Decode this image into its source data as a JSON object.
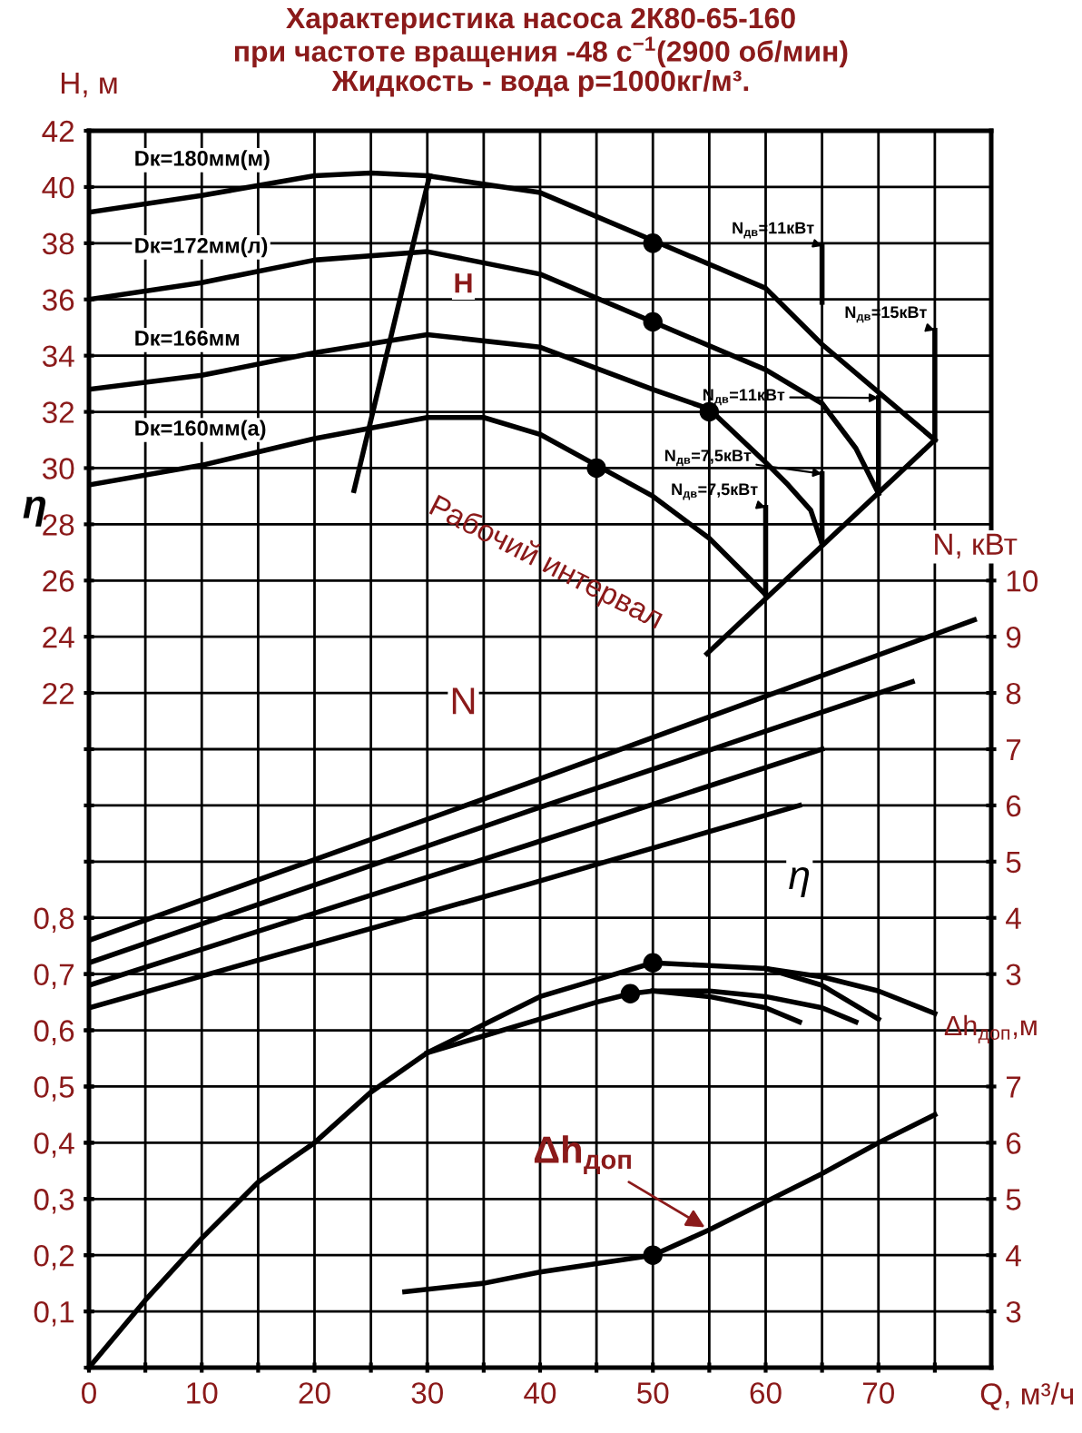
{
  "chart_data": [
    {
      "type": "line",
      "title": "Характеристика насоса 2К80-65-160\nпри частоте вращения -48 с$^{−1}$(2900 об/мин)\nЖидкость - вода р=1000кг/м³.",
      "xlabel": "Q, м³/ч",
      "ylabel": "H, м",
      "y2label": "N, кВт",
      "y3label": "η",
      "xlim": [
        0,
        80
      ],
      "xticks": [
        0,
        {
          "value": 5,
          "label": null
        },
        10,
        {
          "value": 15,
          "label": null
        },
        20,
        {
          "value": 25,
          "label": null
        },
        30,
        {
          "value": 35,
          "label": null
        },
        40,
        {
          "value": 45,
          "label": null
        },
        50,
        {
          "value": 55,
          "label": null
        },
        60,
        {
          "value": 65,
          "label": null
        },
        70,
        {
          "value": 75,
          "label": null
        }
      ],
      "ylim": [
        -2,
        42
      ],
      "yticks": [
        {
          "value": -2,
          "label": null
        },
        {
          "value": 0,
          "label": null
        },
        {
          "value": 2,
          "label": null
        },
        {
          "value": 4,
          "label": null
        },
        {
          "value": 6,
          "label": null
        },
        {
          "value": 8,
          "label": null
        },
        {
          "value": 10,
          "label": null
        },
        {
          "value": 12,
          "label": null
        },
        {
          "value": 14,
          "label": null
        },
        {
          "value": 16,
          "label": null
        },
        {
          "value": 18,
          "label": null
        },
        {
          "value": 20,
          "label": null
        },
        22,
        24,
        26,
        28,
        30,
        32,
        34,
        36,
        38,
        40,
        42
      ],
      "y2lim": [
        -4,
        18
      ],
      "y2ticks": [
        3,
        4,
        5,
        6,
        7,
        8,
        9,
        10
      ],
      "y3lim": [
        0,
        2.2
      ],
      "y3ticks": [
        {
          "value": 0.1,
          "label": "0,1"
        },
        {
          "value": 0.2,
          "label": "0,2"
        },
        {
          "value": 0.3,
          "label": "0,3"
        },
        {
          "value": 0.4,
          "label": "0,4"
        },
        {
          "value": 0.5,
          "label": "0,5"
        },
        {
          "value": 0.6,
          "label": "0,6"
        },
        {
          "value": 0.7,
          "label": "0,7"
        },
        {
          "value": 0.8,
          "label": "0,8"
        }
      ],
      "grid": true,
      "marker": "none",
      "line_style": "solid",
      "series": [
        {
          "name": "Dк=180мм(м)",
          "color": "#000000",
          "x": [
            0,
            10,
            20,
            25,
            30,
            40,
            50,
            60,
            65,
            70,
            75
          ],
          "values": [
            39.1,
            39.7,
            40.4,
            40.5,
            40.4,
            39.8,
            38.1,
            36.4,
            34.4,
            32.7,
            31.0
          ]
        },
        {
          "name": "Dк=172мм(л)",
          "color": "#000000",
          "x": [
            0,
            10,
            20,
            30,
            40,
            50,
            60,
            65,
            68,
            70
          ],
          "values": [
            36.0,
            36.6,
            37.4,
            37.7,
            36.9,
            35.2,
            33.5,
            32.3,
            30.7,
            29.1
          ]
        },
        {
          "name": "Dк=166мм",
          "color": "#000000",
          "x": [
            0,
            10,
            20,
            30,
            40,
            50,
            55,
            60,
            62,
            64,
            65
          ],
          "values": [
            32.8,
            33.3,
            34.1,
            34.75,
            34.3,
            32.8,
            32.1,
            30.2,
            29.4,
            28.5,
            27.3
          ]
        },
        {
          "name": "Dк=160мм(а)",
          "color": "#000000",
          "x": [
            0,
            10,
            20,
            30,
            35,
            40,
            45,
            50,
            55,
            60
          ],
          "values": [
            29.4,
            30.1,
            31.05,
            31.8,
            31.8,
            31.2,
            30.1,
            29.0,
            27.5,
            25.5
          ]
        },
        {
          "type": "scatter",
          "marker": "circle",
          "color": "#000000",
          "x": [
            50,
            50,
            55,
            45
          ],
          "values": [
            38,
            35.2,
            32,
            30
          ]
        },
        {
          "color": "#000000",
          "x": [
            30.2,
            23.5
          ],
          "values": [
            40.4,
            29.2
          ]
        },
        {
          "color": "#000000",
          "x": [
            75,
            54.8
          ],
          "values": [
            31.0,
            23.4
          ]
        },
        {
          "color": "#000000",
          "x": [
            65,
            65
          ],
          "values": [
            37.9,
            35.9
          ]
        },
        {
          "color": "#000000",
          "x": [
            75,
            75
          ],
          "values": [
            34.9,
            31.0
          ]
        },
        {
          "color": "#000000",
          "x": [
            70,
            70
          ],
          "values": [
            32.5,
            29.1
          ]
        },
        {
          "color": "#000000",
          "x": [
            65,
            65
          ],
          "values": [
            29.8,
            27.3
          ]
        },
        {
          "color": "#000000",
          "x": [
            60,
            60
          ],
          "values": [
            28.6,
            25.5
          ]
        },
        {
          "color": "#000000",
          "axis": "y2",
          "x": [
            0,
            39,
            78.5
          ],
          "values": [
            3.6,
            6.4,
            9.3
          ]
        },
        {
          "color": "#000000",
          "axis": "y2",
          "x": [
            0,
            39,
            73
          ],
          "values": [
            3.2,
            5.9,
            8.2
          ]
        },
        {
          "color": "#000000",
          "axis": "y2",
          "x": [
            0,
            39,
            65
          ],
          "values": [
            2.8,
            5.3,
            7.0
          ]
        },
        {
          "color": "#000000",
          "axis": "y2",
          "x": [
            0,
            39,
            63
          ],
          "values": [
            2.4,
            4.6,
            6.0
          ]
        },
        {
          "color": "#000000",
          "axis": "y3",
          "x": [
            0,
            5,
            10,
            15,
            20,
            25,
            30,
            35,
            40,
            45,
            50,
            55,
            60,
            65,
            70,
            75
          ],
          "values": [
            0,
            0.12,
            0.23,
            0.33,
            0.4,
            0.49,
            0.56,
            0.61,
            0.66,
            0.69,
            0.72,
            0.715,
            0.71,
            0.695,
            0.67,
            0.63
          ]
        },
        {
          "color": "#000000",
          "axis": "y3",
          "x": [
            30,
            35,
            40,
            45,
            48,
            50,
            55,
            60,
            65,
            68
          ],
          "values": [
            0.56,
            0.59,
            0.62,
            0.65,
            0.665,
            0.67,
            0.67,
            0.66,
            0.64,
            0.615
          ]
        },
        {
          "color": "#000000",
          "axis": "y3",
          "x": [
            60,
            65,
            70
          ],
          "values": [
            0.71,
            0.68,
            0.62
          ]
        },
        {
          "color": "#000000",
          "axis": "y3",
          "x": [
            50,
            55,
            60,
            63
          ],
          "values": [
            0.67,
            0.66,
            0.64,
            0.615
          ]
        },
        {
          "type": "scatter",
          "marker": "circle",
          "color": "#000000",
          "axis": "y3",
          "x": [
            50,
            48
          ],
          "values": [
            0.72,
            0.665
          ]
        }
      ],
      "annotations": [
        {
          "text": "Н",
          "x": 33.2,
          "y": 36.5
        },
        {
          "text": "N",
          "x": 33.2,
          "y": 21.6
        },
        {
          "text": "η",
          "x": 63,
          "y": 15.4
        },
        "Рабочий интервал",
        {
          "text": "N$_{дв}$=11кВт",
          "x": 65,
          "y": 37.9
        },
        {
          "text": "N$_{дв}$=15кВт",
          "x": 75,
          "y": 34.9
        },
        {
          "text": "N$_{дв}$=11кВт",
          "x": 70,
          "y": 32.5
        },
        {
          "text": "N$_{дв}$=7,5кВт",
          "x": 65,
          "y": 29.8
        },
        {
          "text": "N$_{дв}$=7,5кВт",
          "x": 60,
          "y": 28.6
        }
      ]
    },
    {
      "type": "line",
      "ylabel": "Δh$_{доп}$,м",
      "xlim": [
        0,
        80
      ],
      "ylim": [
        2,
        24
      ],
      "yticks": [
        3,
        4,
        5,
        6,
        7
      ],
      "tick_labels": "y",
      "marker": "none",
      "series": [
        {
          "color": "#000000",
          "x": [
            28,
            35,
            40,
            45,
            50,
            55,
            60,
            65,
            70,
            75
          ],
          "values": [
            3.35,
            3.5,
            3.7,
            3.85,
            4.0,
            4.45,
            4.95,
            5.45,
            6.0,
            6.5
          ]
        },
        {
          "type": "scatter",
          "marker": "circle",
          "color": "#000000",
          "x": [
            50
          ],
          "values": [
            4.0
          ]
        }
      ],
      "annotations": [
        {
          "text": "Δh$_{доп}$",
          "x": 55,
          "y": 4.45
        }
      ]
    }
  ]
}
